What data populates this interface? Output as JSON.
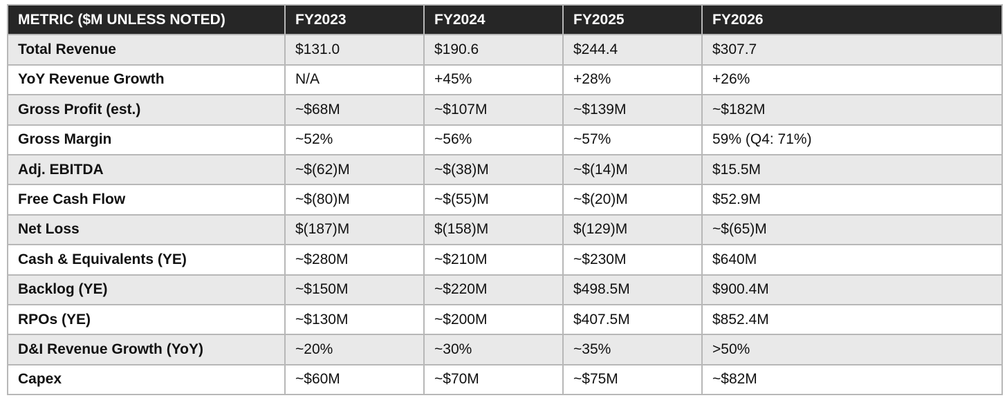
{
  "table": {
    "header": [
      "METRIC ($M UNLESS NOTED)",
      "FY2023",
      "FY2024",
      "FY2025",
      "FY2026"
    ],
    "rows": [
      [
        "Total Revenue",
        "$131.0",
        "$190.6",
        "$244.4",
        "$307.7"
      ],
      [
        "YoY Revenue Growth",
        "N/A",
        "+45%",
        "+28%",
        "+26%"
      ],
      [
        "Gross Profit (est.)",
        "~$68M",
        "~$107M",
        "~$139M",
        "~$182M"
      ],
      [
        "Gross Margin",
        "~52%",
        "~56%",
        "~57%",
        "59% (Q4: 71%)"
      ],
      [
        "Adj. EBITDA",
        "~$(62)M",
        "~$(38)M",
        "~$(14)M",
        "$15.5M"
      ],
      [
        "Free Cash Flow",
        "~$(80)M",
        "~$(55)M",
        "~$(20)M",
        "$52.9M"
      ],
      [
        "Net Loss",
        "$(187)M",
        "$(158)M",
        "$(129)M",
        "~$(65)M"
      ],
      [
        "Cash & Equivalents (YE)",
        "~$280M",
        "~$210M",
        "~$230M",
        "$640M"
      ],
      [
        "Backlog (YE)",
        "~$150M",
        "~$220M",
        "$498.5M",
        "$900.4M"
      ],
      [
        "RPOs (YE)",
        "~$130M",
        "~$200M",
        "$407.5M",
        "$852.4M"
      ],
      [
        "D&I Revenue Growth (YoY)",
        "~20%",
        "~30%",
        "~35%",
        ">50%"
      ],
      [
        "Capex",
        "~$60M",
        "~$70M",
        "~$75M",
        "~$82M"
      ]
    ]
  }
}
